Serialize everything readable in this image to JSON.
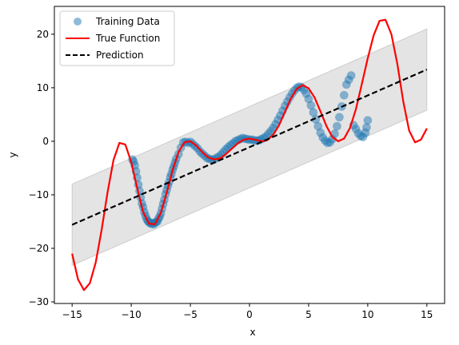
{
  "chart_data": {
    "type": "line",
    "xlabel": "x",
    "ylabel": "y",
    "xlim": [
      -16.5,
      16.5
    ],
    "ylim": [
      -30.3,
      25.2
    ],
    "xticks": [
      -15,
      -10,
      -5,
      0,
      5,
      10,
      15
    ],
    "yticks": [
      -30,
      -20,
      -10,
      0,
      10,
      20
    ],
    "legend": {
      "placement": "top-left",
      "entries": [
        "Training Data",
        "True Function",
        "Prediction"
      ]
    },
    "colors": {
      "training_data": "#1f77b4",
      "true_function": "#ff0000",
      "prediction": "#000000",
      "band": "#bfbfbf"
    },
    "series": [
      {
        "name": "Training Data",
        "kind": "scatter",
        "x": [
          -9.9,
          -9.8,
          -9.7,
          -9.6,
          -9.5,
          -9.4,
          -9.3,
          -9.2,
          -9.1,
          -9.0,
          -8.9,
          -8.8,
          -8.7,
          -8.6,
          -8.5,
          -8.4,
          -8.3,
          -8.2,
          -8.1,
          -8.0,
          -7.9,
          -7.8,
          -7.7,
          -7.6,
          -7.5,
          -7.4,
          -7.3,
          -7.2,
          -7.1,
          -7.0,
          -6.9,
          -6.8,
          -6.7,
          -6.6,
          -6.5,
          -6.4,
          -6.3,
          -6.2,
          -6.0,
          -5.8,
          -5.6,
          -5.4,
          -5.2,
          -5.0,
          -4.8,
          -4.6,
          -4.4,
          -4.2,
          -4.0,
          -3.8,
          -3.6,
          -3.4,
          -3.2,
          -3.0,
          -2.8,
          -2.6,
          -2.4,
          -2.2,
          -2.0,
          -1.8,
          -1.6,
          -1.4,
          -1.2,
          -1.0,
          -0.8,
          -0.6,
          -0.4,
          -0.2,
          0.0,
          0.2,
          0.4,
          0.6,
          0.8,
          1.0,
          1.2,
          1.4,
          1.6,
          1.8,
          2.0,
          2.2,
          2.4,
          2.6,
          2.8,
          3.0,
          3.2,
          3.4,
          3.6,
          3.8,
          4.0,
          4.2,
          4.4,
          4.6,
          4.8,
          5.0,
          5.2,
          5.4,
          5.6,
          5.8,
          6.0,
          6.2,
          6.4,
          6.6,
          6.8,
          7.0,
          7.2,
          7.4,
          7.6,
          7.8,
          8.0,
          8.2,
          8.4,
          8.6,
          8.8,
          9.0,
          9.2,
          9.4,
          9.6,
          9.8,
          9.9,
          10.0
        ],
        "y": [
          -3.4,
          -3.8,
          -4.5,
          -5.6,
          -6.8,
          -8.1,
          -9.3,
          -10.5,
          -11.6,
          -12.3,
          -13.2,
          -13.9,
          -14.5,
          -14.9,
          -15.1,
          -15.3,
          -15.4,
          -15.3,
          -15.5,
          -15.2,
          -15.1,
          -15.0,
          -14.5,
          -14.1,
          -13.5,
          -12.6,
          -11.7,
          -10.9,
          -9.9,
          -9.1,
          -8.3,
          -7.6,
          -6.7,
          -6.1,
          -5.3,
          -4.7,
          -4.0,
          -3.3,
          -2.4,
          -1.2,
          -0.2,
          -0.1,
          -0.3,
          -0.1,
          -0.5,
          -0.9,
          -1.3,
          -1.9,
          -2.3,
          -2.7,
          -3.1,
          -3.3,
          -3.4,
          -3.4,
          -3.1,
          -2.9,
          -2.5,
          -2.0,
          -1.5,
          -1.1,
          -0.7,
          -0.4,
          0.0,
          0.2,
          0.4,
          0.6,
          0.5,
          0.4,
          0.3,
          0.3,
          0.2,
          0.1,
          0.2,
          0.4,
          0.6,
          0.9,
          1.4,
          1.9,
          2.5,
          3.2,
          4.0,
          4.8,
          5.7,
          6.6,
          7.4,
          8.2,
          8.9,
          9.5,
          10.0,
          10.2,
          10.1,
          9.6,
          8.9,
          7.9,
          6.7,
          5.4,
          4.1,
          2.8,
          1.6,
          0.7,
          0.1,
          -0.3,
          -0.2,
          0.4,
          1.4,
          2.8,
          4.5,
          6.5,
          8.6,
          10.6,
          11.5,
          12.3,
          3.0,
          2.3,
          1.5,
          1.0,
          0.8,
          1.6,
          2.6,
          3.9
        ],
        "marker": "circle"
      },
      {
        "name": "True Function",
        "kind": "line",
        "x": [
          -15.0,
          -14.5,
          -14.0,
          -13.5,
          -13.0,
          -12.5,
          -12.0,
          -11.5,
          -11.0,
          -10.5,
          -10.0,
          -9.5,
          -9.0,
          -8.5,
          -8.0,
          -7.5,
          -7.0,
          -6.5,
          -6.0,
          -5.5,
          -5.0,
          -4.5,
          -4.0,
          -3.5,
          -3.0,
          -2.5,
          -2.0,
          -1.5,
          -1.0,
          -0.5,
          0.0,
          0.5,
          1.0,
          1.5,
          2.0,
          2.5,
          3.0,
          3.5,
          4.0,
          4.5,
          5.0,
          5.5,
          6.0,
          6.5,
          7.0,
          7.5,
          8.0,
          8.5,
          9.0,
          9.5,
          10.0,
          10.5,
          11.0,
          11.5,
          12.0,
          12.5,
          13.0,
          13.5,
          14.0,
          14.5,
          15.0
        ],
        "y": [
          -21.0,
          -25.8,
          -27.8,
          -26.5,
          -22.6,
          -16.5,
          -9.5,
          -3.5,
          -0.3,
          -0.6,
          -3.9,
          -8.7,
          -13.2,
          -15.4,
          -15.5,
          -13.4,
          -9.6,
          -5.4,
          -2.0,
          -0.2,
          0.0,
          -0.8,
          -2.0,
          -3.0,
          -3.4,
          -3.2,
          -2.4,
          -1.4,
          -0.4,
          0.3,
          0.5,
          0.3,
          0.0,
          0.2,
          1.2,
          3.0,
          5.5,
          8.0,
          9.8,
          10.5,
          9.9,
          8.2,
          5.6,
          2.9,
          0.8,
          0.0,
          0.5,
          2.5,
          6.0,
          10.7,
          15.5,
          19.8,
          22.5,
          22.7,
          20.0,
          14.5,
          7.5,
          2.0,
          -0.2,
          0.3,
          2.4
        ],
        "style": "solid"
      },
      {
        "name": "Prediction",
        "kind": "line",
        "x": [
          -15,
          15
        ],
        "y": [
          -15.6,
          13.4
        ],
        "style": "dashed"
      }
    ],
    "uncertainty_band": {
      "x": [
        -15,
        15
      ],
      "lower": [
        -23.2,
        5.8
      ],
      "upper": [
        -8.0,
        21.0
      ]
    }
  }
}
